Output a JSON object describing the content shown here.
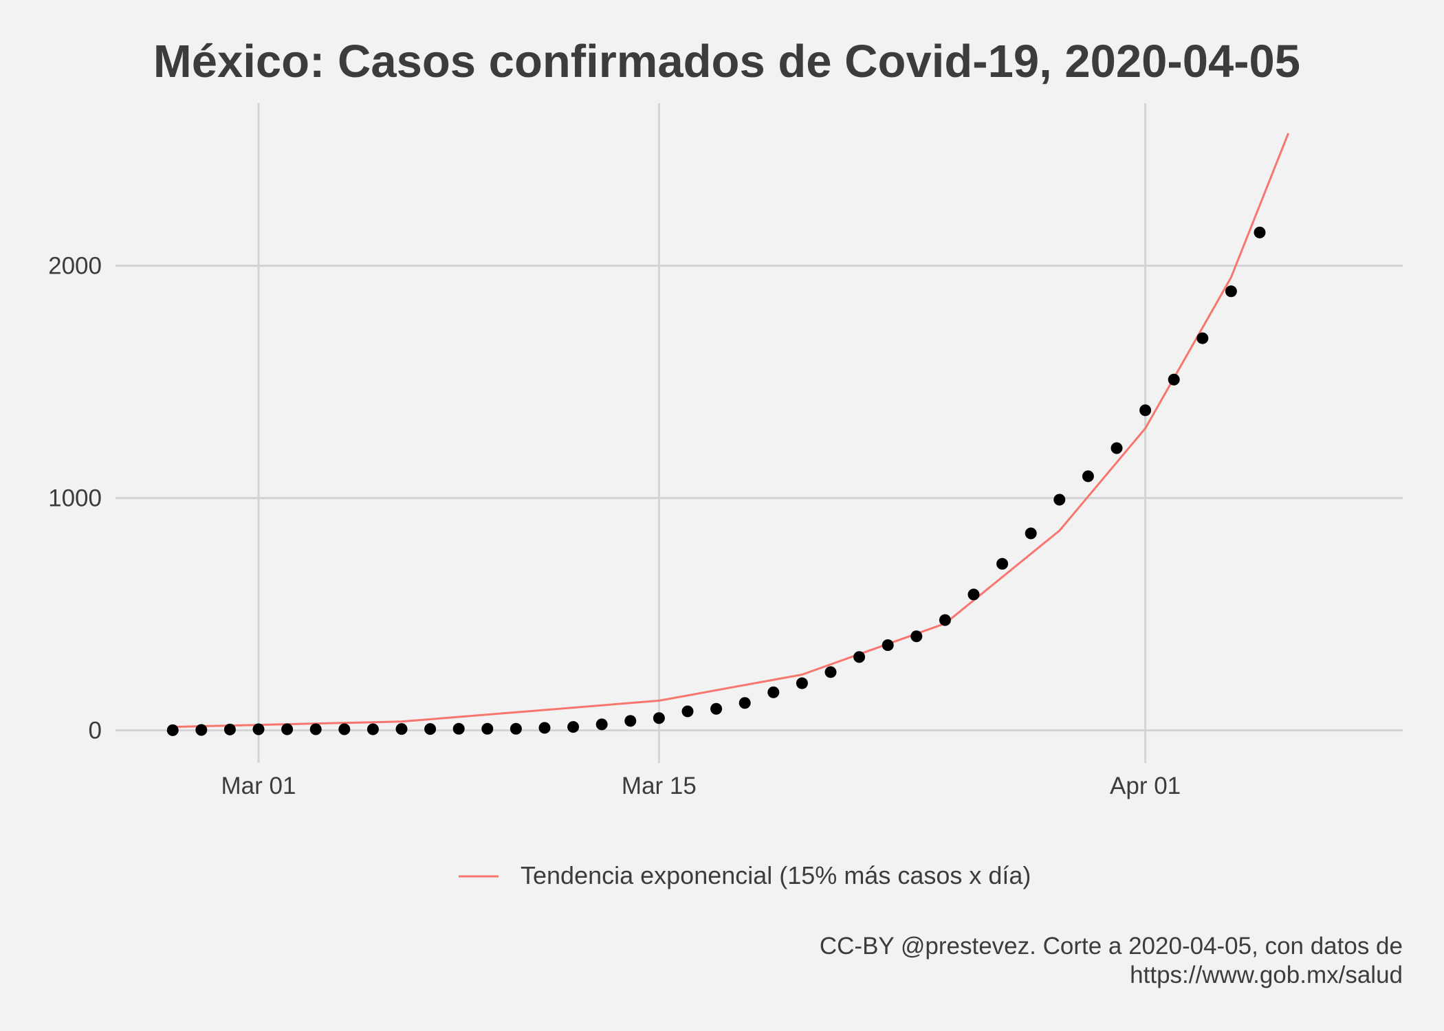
{
  "chart_data": {
    "type": "scatter",
    "title": "México: Casos confirmados de Covid-19, 2020-04-05",
    "xlabel": "",
    "ylabel": "",
    "x_axis": {
      "type": "date",
      "range": [
        "2020-02-25",
        "2020-04-10"
      ],
      "ticks": [
        {
          "date": "2020-03-01",
          "label": "Mar 01"
        },
        {
          "date": "2020-03-15",
          "label": "Mar 15"
        },
        {
          "date": "2020-04-01",
          "label": "Apr 01"
        }
      ]
    },
    "y_axis": {
      "range": [
        -140,
        2700
      ],
      "ticks": [
        {
          "value": 0,
          "label": "0"
        },
        {
          "value": 1000,
          "label": "1000"
        },
        {
          "value": 2000,
          "label": "2000"
        }
      ]
    },
    "grid": true,
    "series": [
      {
        "kind": "points",
        "color": "#000000",
        "points": [
          {
            "x": "2020-02-27",
            "y": 1
          },
          {
            "x": "2020-02-28",
            "y": 2
          },
          {
            "x": "2020-02-29",
            "y": 4
          },
          {
            "x": "2020-03-01",
            "y": 5
          },
          {
            "x": "2020-03-02",
            "y": 5
          },
          {
            "x": "2020-03-03",
            "y": 5
          },
          {
            "x": "2020-03-04",
            "y": 5
          },
          {
            "x": "2020-03-05",
            "y": 5
          },
          {
            "x": "2020-03-06",
            "y": 6
          },
          {
            "x": "2020-03-07",
            "y": 6
          },
          {
            "x": "2020-03-08",
            "y": 7
          },
          {
            "x": "2020-03-09",
            "y": 7
          },
          {
            "x": "2020-03-10",
            "y": 7
          },
          {
            "x": "2020-03-11",
            "y": 11
          },
          {
            "x": "2020-03-12",
            "y": 15
          },
          {
            "x": "2020-03-13",
            "y": 26
          },
          {
            "x": "2020-03-14",
            "y": 41
          },
          {
            "x": "2020-03-15",
            "y": 53
          },
          {
            "x": "2020-03-16",
            "y": 82
          },
          {
            "x": "2020-03-17",
            "y": 93
          },
          {
            "x": "2020-03-18",
            "y": 118
          },
          {
            "x": "2020-03-19",
            "y": 164
          },
          {
            "x": "2020-03-20",
            "y": 203
          },
          {
            "x": "2020-03-21",
            "y": 251
          },
          {
            "x": "2020-03-22",
            "y": 316
          },
          {
            "x": "2020-03-23",
            "y": 367
          },
          {
            "x": "2020-03-24",
            "y": 405
          },
          {
            "x": "2020-03-25",
            "y": 475
          },
          {
            "x": "2020-03-26",
            "y": 585
          },
          {
            "x": "2020-03-27",
            "y": 717
          },
          {
            "x": "2020-03-28",
            "y": 848
          },
          {
            "x": "2020-03-29",
            "y": 993
          },
          {
            "x": "2020-03-30",
            "y": 1094
          },
          {
            "x": "2020-03-31",
            "y": 1215
          },
          {
            "x": "2020-04-01",
            "y": 1378
          },
          {
            "x": "2020-04-02",
            "y": 1510
          },
          {
            "x": "2020-04-03",
            "y": 1688
          },
          {
            "x": "2020-04-04",
            "y": 1890
          },
          {
            "x": "2020-04-05",
            "y": 2143
          }
        ]
      },
      {
        "kind": "line",
        "name": "Tendencia exponencial (15% más casos x día)",
        "color": "#f8766d",
        "points": [
          {
            "x": "2020-02-27",
            "y": 15
          },
          {
            "x": "2020-03-06",
            "y": 38
          },
          {
            "x": "2020-03-15",
            "y": 128
          },
          {
            "x": "2020-03-20",
            "y": 240
          },
          {
            "x": "2020-03-25",
            "y": 460
          },
          {
            "x": "2020-03-29",
            "y": 860
          },
          {
            "x": "2020-04-01",
            "y": 1300
          },
          {
            "x": "2020-04-04",
            "y": 1950
          },
          {
            "x": "2020-04-06",
            "y": 2570
          }
        ]
      }
    ],
    "legend": {
      "position": "bottom",
      "entries": [
        {
          "label": "Tendencia exponencial (15% más casos x día)",
          "color": "#f8766d",
          "kind": "line"
        }
      ]
    },
    "caption": [
      "CC-BY @prestevez. Corte a 2020-04-05, con datos de",
      "https://www.gob.mx/salud"
    ]
  }
}
